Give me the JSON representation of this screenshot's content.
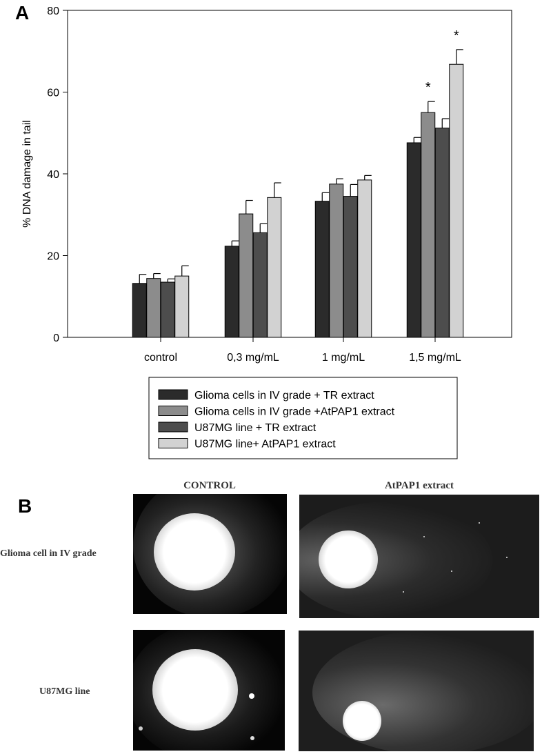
{
  "chart_data": {
    "type": "bar",
    "panel_label": "A",
    "categories": [
      "control",
      "0,3 mg/mL",
      "1  mg/mL",
      "1,5  mg/mL"
    ],
    "ylabel": "% DNA damage in tail",
    "ylim": [
      0,
      80
    ],
    "yticks": [
      0,
      20,
      40,
      60,
      80
    ],
    "legend_position": "bottom",
    "series": [
      {
        "name": "Glioma  cells in IV grade + TR extract",
        "color": "#2b2b2b",
        "values": [
          13.2,
          22.3,
          33.3,
          47.6
        ],
        "errors": [
          2.2,
          1.3,
          2.1,
          1.3
        ]
      },
      {
        "name": "Glioma cells in IV grade +AtPAP1 extract",
        "color": "#8c8c8c",
        "values": [
          14.4,
          30.2,
          37.5,
          55.0
        ],
        "errors": [
          1.2,
          3.3,
          1.3,
          2.7
        ]
      },
      {
        "name": "U87MG line + TR extract",
        "color": "#4d4d4d",
        "values": [
          13.5,
          25.6,
          34.5,
          51.2
        ],
        "errors": [
          0.8,
          2.2,
          2.9,
          2.3
        ]
      },
      {
        "name": "U87MG line+ AtPAP1 extract",
        "color": "#d2d2d2",
        "values": [
          15.0,
          34.2,
          38.5,
          66.8
        ],
        "errors": [
          2.5,
          3.6,
          1.1,
          3.6
        ]
      }
    ],
    "annotations": [
      {
        "text": "*",
        "category_index": 3,
        "series_index": 1
      },
      {
        "text": "*",
        "category_index": 3,
        "series_index": 3
      }
    ]
  },
  "panel_b": {
    "label": "B",
    "columns": [
      "CONTROL",
      "AtPAP1 extract"
    ],
    "rows": [
      "Glioma cell in IV grade",
      "U87MG line"
    ]
  }
}
